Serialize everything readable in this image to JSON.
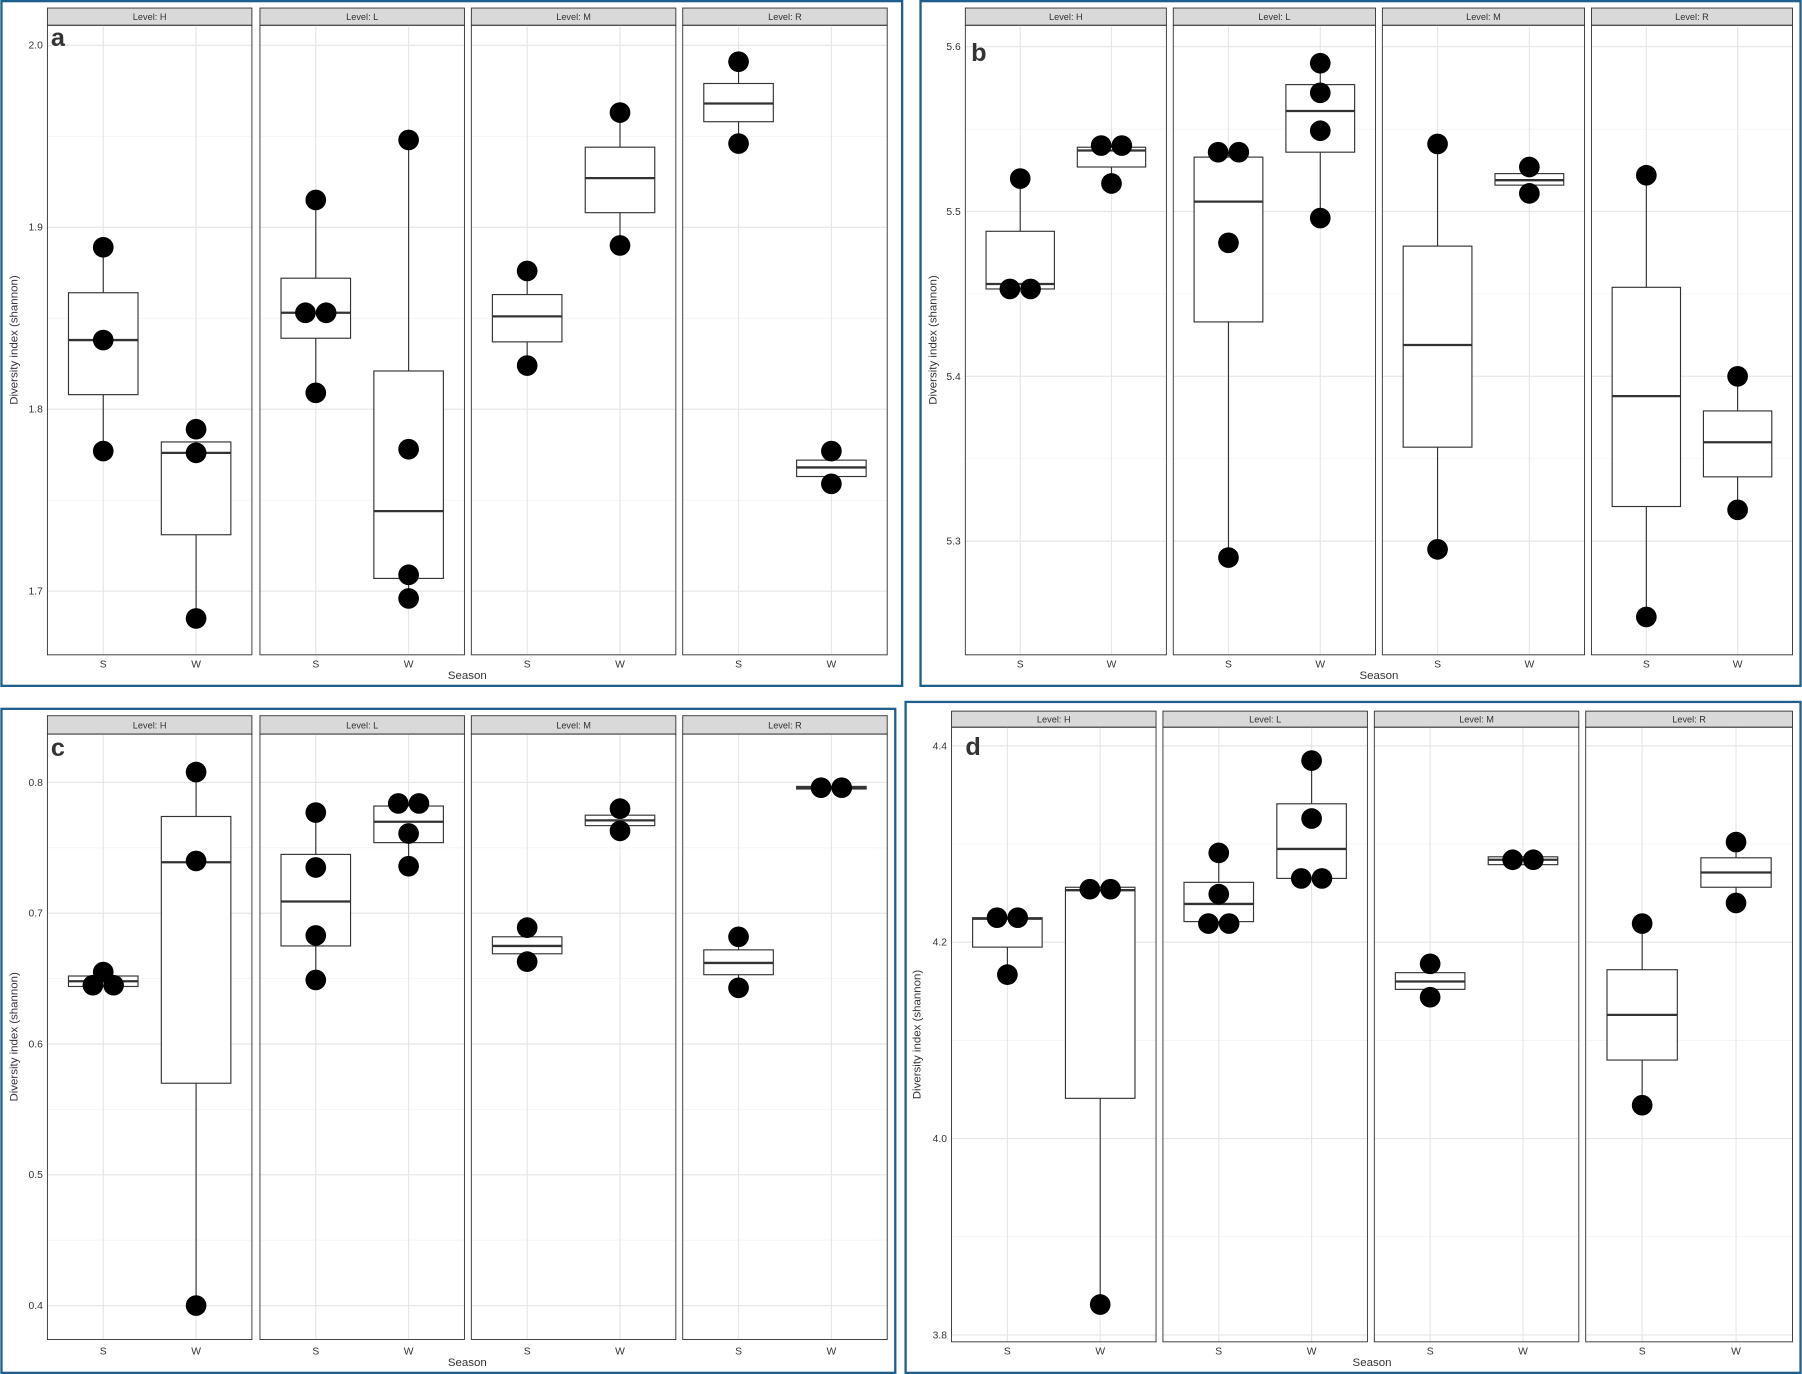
{
  "chart_data": [
    {
      "type": "box",
      "label": "a",
      "ylabel": "Diversity index (shannon)",
      "xlabel": "Season",
      "ylim": [
        1.665,
        2.011
      ],
      "yticks": [
        {
          "value": 2,
          "label": "2.0"
        },
        1.9,
        1.8,
        1.7
      ],
      "facets": [
        {
          "title": "Level: H",
          "categories": [
            "S",
            "W"
          ],
          "boxes": [
            {
              "low": 1.777,
              "q1": 1.808,
              "median": 1.838,
              "q3": 1.864,
              "high": 1.889,
              "points": [
                1.889,
                1.838,
                1.777
              ]
            },
            {
              "low": 1.685,
              "q1": 1.731,
              "median": 1.776,
              "q3": 1.782,
              "high": 1.782,
              "points": [
                1.789,
                1.776,
                1.685
              ]
            }
          ]
        },
        {
          "title": "Level: L",
          "categories": [
            "S",
            "W"
          ],
          "boxes": [
            {
              "low": 1.809,
              "q1": 1.839,
              "median": 1.853,
              "q3": 1.872,
              "high": 1.915,
              "points": [
                1.915,
                1.853,
                1.853,
                1.809
              ]
            },
            {
              "low": 1.696,
              "q1": 1.707,
              "median": 1.744,
              "q3": 1.821,
              "high": 1.948,
              "points": [
                1.948,
                1.778,
                1.709,
                1.696
              ]
            }
          ]
        },
        {
          "title": "Level: M",
          "categories": [
            "S",
            "W"
          ],
          "boxes": [
            {
              "low": 1.824,
              "q1": 1.837,
              "median": 1.851,
              "q3": 1.863,
              "high": 1.876,
              "points": [
                1.876,
                1.824
              ]
            },
            {
              "low": 1.89,
              "q1": 1.908,
              "median": 1.927,
              "q3": 1.944,
              "high": 1.963,
              "points": [
                1.963,
                1.89
              ]
            }
          ]
        },
        {
          "title": "Level: R",
          "categories": [
            "S",
            "W"
          ],
          "boxes": [
            {
              "low": 1.946,
              "q1": 1.958,
              "median": 1.968,
              "q3": 1.979,
              "high": 1.991,
              "points": [
                1.991,
                1.946
              ]
            },
            {
              "low": 1.759,
              "q1": 1.763,
              "median": 1.768,
              "q3": 1.772,
              "high": 1.777,
              "points": [
                1.777,
                1.759
              ]
            }
          ]
        }
      ]
    },
    {
      "type": "box",
      "label": "b",
      "ylabel": "Diversity index (shannon)",
      "xlabel": "Season",
      "ylim": [
        5.231,
        5.613
      ],
      "yticks": [
        5.6,
        5.5,
        5.4,
        5.3
      ],
      "facets": [
        {
          "title": "Level: H",
          "categories": [
            "S",
            "W"
          ],
          "boxes": [
            {
              "low": 5.453,
              "q1": 5.453,
              "median": 5.456,
              "q3": 5.488,
              "high": 5.52,
              "points": [
                5.52,
                5.453,
                5.453
              ]
            },
            {
              "low": 5.517,
              "q1": 5.527,
              "median": 5.537,
              "q3": 5.539,
              "high": 5.54,
              "points": [
                5.54,
                5.54,
                5.517
              ]
            }
          ]
        },
        {
          "title": "Level: L",
          "categories": [
            "S",
            "W"
          ],
          "boxes": [
            {
              "low": 5.29,
              "q1": 5.433,
              "median": 5.506,
              "q3": 5.533,
              "high": 5.536,
              "points": [
                5.536,
                5.536,
                5.481,
                5.29
              ]
            },
            {
              "low": 5.496,
              "q1": 5.536,
              "median": 5.561,
              "q3": 5.577,
              "high": 5.59,
              "points": [
                5.59,
                5.572,
                5.549,
                5.496
              ]
            }
          ]
        },
        {
          "title": "Level: M",
          "categories": [
            "S",
            "W"
          ],
          "boxes": [
            {
              "low": 5.295,
              "q1": 5.357,
              "median": 5.419,
              "q3": 5.479,
              "high": 5.541,
              "points": [
                5.541,
                5.295
              ]
            },
            {
              "low": 5.511,
              "q1": 5.516,
              "median": 5.519,
              "q3": 5.523,
              "high": 5.527,
              "points": [
                5.527,
                5.511
              ]
            }
          ]
        },
        {
          "title": "Level: R",
          "categories": [
            "S",
            "W"
          ],
          "boxes": [
            {
              "low": 5.254,
              "q1": 5.321,
              "median": 5.388,
              "q3": 5.454,
              "high": 5.522,
              "points": [
                5.522,
                5.254
              ]
            },
            {
              "low": 5.319,
              "q1": 5.339,
              "median": 5.36,
              "q3": 5.379,
              "high": 5.4,
              "points": [
                5.4,
                5.319
              ]
            }
          ]
        }
      ]
    },
    {
      "type": "box",
      "label": "c",
      "ylabel": "Diversity index (shannon)",
      "xlabel": "Season",
      "ylim": [
        0.374,
        0.837
      ],
      "yticks": [
        0.8,
        0.7,
        0.6,
        0.5,
        0.4
      ],
      "facets": [
        {
          "title": "Level: H",
          "categories": [
            "S",
            "W"
          ],
          "boxes": [
            {
              "low": 0.644,
              "q1": 0.644,
              "median": 0.648,
              "q3": 0.652,
              "high": 0.655,
              "points": [
                0.655,
                0.645,
                0.645
              ]
            },
            {
              "low": 0.4,
              "q1": 0.57,
              "median": 0.739,
              "q3": 0.774,
              "high": 0.808,
              "points": [
                0.808,
                0.74,
                0.4
              ]
            }
          ]
        },
        {
          "title": "Level: L",
          "categories": [
            "S",
            "W"
          ],
          "boxes": [
            {
              "low": 0.649,
              "q1": 0.675,
              "median": 0.709,
              "q3": 0.745,
              "high": 0.777,
              "points": [
                0.777,
                0.735,
                0.683,
                0.649
              ]
            },
            {
              "low": 0.736,
              "q1": 0.754,
              "median": 0.77,
              "q3": 0.782,
              "high": 0.784,
              "points": [
                0.784,
                0.784,
                0.761,
                0.736
              ]
            }
          ]
        },
        {
          "title": "Level: M",
          "categories": [
            "S",
            "W"
          ],
          "boxes": [
            {
              "low": 0.663,
              "q1": 0.669,
              "median": 0.675,
              "q3": 0.682,
              "high": 0.689,
              "points": [
                0.689,
                0.663
              ]
            },
            {
              "low": 0.763,
              "q1": 0.767,
              "median": 0.771,
              "q3": 0.775,
              "high": 0.78,
              "points": [
                0.78,
                0.763
              ]
            }
          ]
        },
        {
          "title": "Level: R",
          "categories": [
            "S",
            "W"
          ],
          "boxes": [
            {
              "low": 0.643,
              "q1": 0.653,
              "median": 0.662,
              "q3": 0.672,
              "high": 0.682,
              "points": [
                0.682,
                0.643
              ]
            },
            {
              "low": 0.795,
              "q1": 0.795,
              "median": 0.796,
              "q3": 0.797,
              "high": 0.797,
              "points": [
                0.796,
                0.796
              ]
            }
          ]
        }
      ]
    },
    {
      "type": "box",
      "label": "d",
      "ylabel": "Diversity index (shannon)",
      "xlabel": "Season",
      "ylim": [
        3.793,
        4.419
      ],
      "yticks": [
        4.4,
        4.2,
        {
          "value": 4,
          "label": "4.0"
        },
        3.8
      ],
      "facets": [
        {
          "title": "Level: H",
          "categories": [
            "S",
            "W"
          ],
          "boxes": [
            {
              "low": 4.167,
              "q1": 4.195,
              "median": 4.224,
              "q3": 4.225,
              "high": 4.225,
              "points": [
                4.225,
                4.225,
                4.167
              ]
            },
            {
              "low": 3.831,
              "q1": 4.041,
              "median": 4.253,
              "q3": 4.256,
              "high": 4.256,
              "points": [
                4.254,
                4.254,
                3.831
              ]
            }
          ]
        },
        {
          "title": "Level: L",
          "categories": [
            "S",
            "W"
          ],
          "boxes": [
            {
              "low": 4.219,
              "q1": 4.221,
              "median": 4.239,
              "q3": 4.261,
              "high": 4.291,
              "points": [
                4.291,
                4.249,
                4.219,
                4.219
              ]
            },
            {
              "low": 4.265,
              "q1": 4.265,
              "median": 4.295,
              "q3": 4.341,
              "high": 4.385,
              "points": [
                4.385,
                4.326,
                4.265,
                4.265
              ]
            }
          ]
        },
        {
          "title": "Level: M",
          "categories": [
            "S",
            "W"
          ],
          "boxes": [
            {
              "low": 4.144,
              "q1": 4.152,
              "median": 4.16,
              "q3": 4.169,
              "high": 4.178,
              "points": [
                4.178,
                4.144
              ]
            },
            {
              "low": 4.279,
              "q1": 4.279,
              "median": 4.284,
              "q3": 4.287,
              "high": 4.287,
              "points": [
                4.284,
                4.284
              ]
            }
          ]
        },
        {
          "title": "Level: R",
          "categories": [
            "S",
            "W"
          ],
          "boxes": [
            {
              "low": 4.034,
              "q1": 4.08,
              "median": 4.126,
              "q3": 4.172,
              "high": 4.219,
              "points": [
                4.219,
                4.034
              ]
            },
            {
              "low": 4.24,
              "q1": 4.256,
              "median": 4.271,
              "q3": 4.286,
              "high": 4.302,
              "points": [
                4.302,
                4.24
              ]
            }
          ]
        }
      ]
    }
  ]
}
